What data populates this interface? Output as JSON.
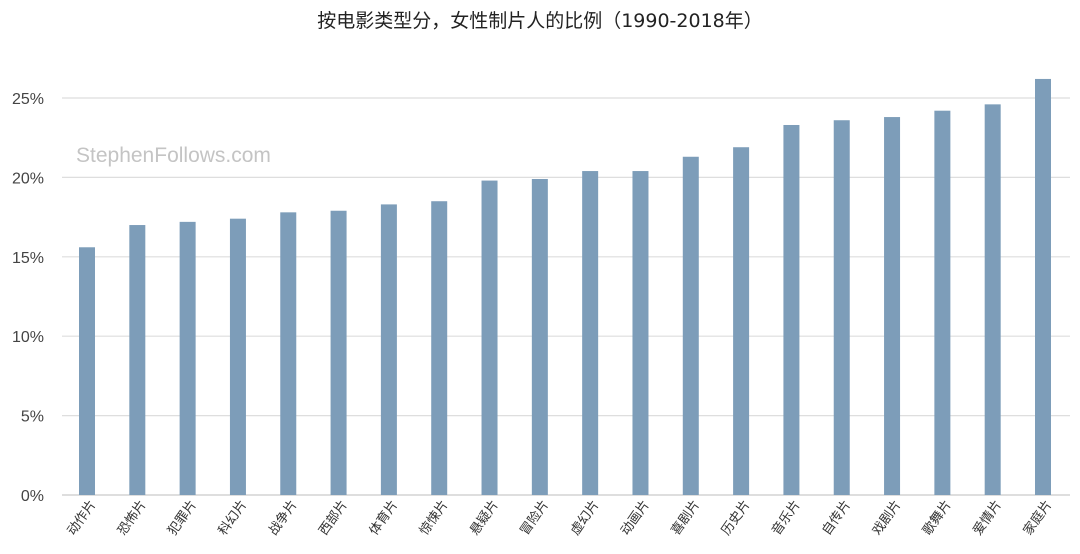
{
  "watermark": "StephenFollows.com",
  "chart_data": {
    "type": "bar",
    "title": "按电影类型分，女性制片人的比例（1990-2018年）",
    "xlabel": "",
    "ylabel": "",
    "ylim": [
      0,
      27
    ],
    "yticks": [
      0,
      5,
      10,
      15,
      20,
      25
    ],
    "ytick_labels": [
      "0%",
      "5%",
      "10%",
      "15%",
      "20%",
      "25%"
    ],
    "grid": true,
    "legend": "none",
    "bar_color": "#7d9db9",
    "categories": [
      "动作片",
      "恐怖片",
      "犯罪片",
      "科幻片",
      "战争片",
      "西部片",
      "体育片",
      "惊悚片",
      "悬疑片",
      "冒险片",
      "虚幻片",
      "动画片",
      "喜剧片",
      "历史片",
      "音乐片",
      "自传片",
      "戏剧片",
      "歌舞片",
      "爱情片",
      "家庭片"
    ],
    "values": [
      15.6,
      17.0,
      17.2,
      17.4,
      17.8,
      17.9,
      18.3,
      18.5,
      19.8,
      19.9,
      20.4,
      20.4,
      21.3,
      21.9,
      23.3,
      23.6,
      23.8,
      24.2,
      24.6,
      26.2
    ]
  }
}
